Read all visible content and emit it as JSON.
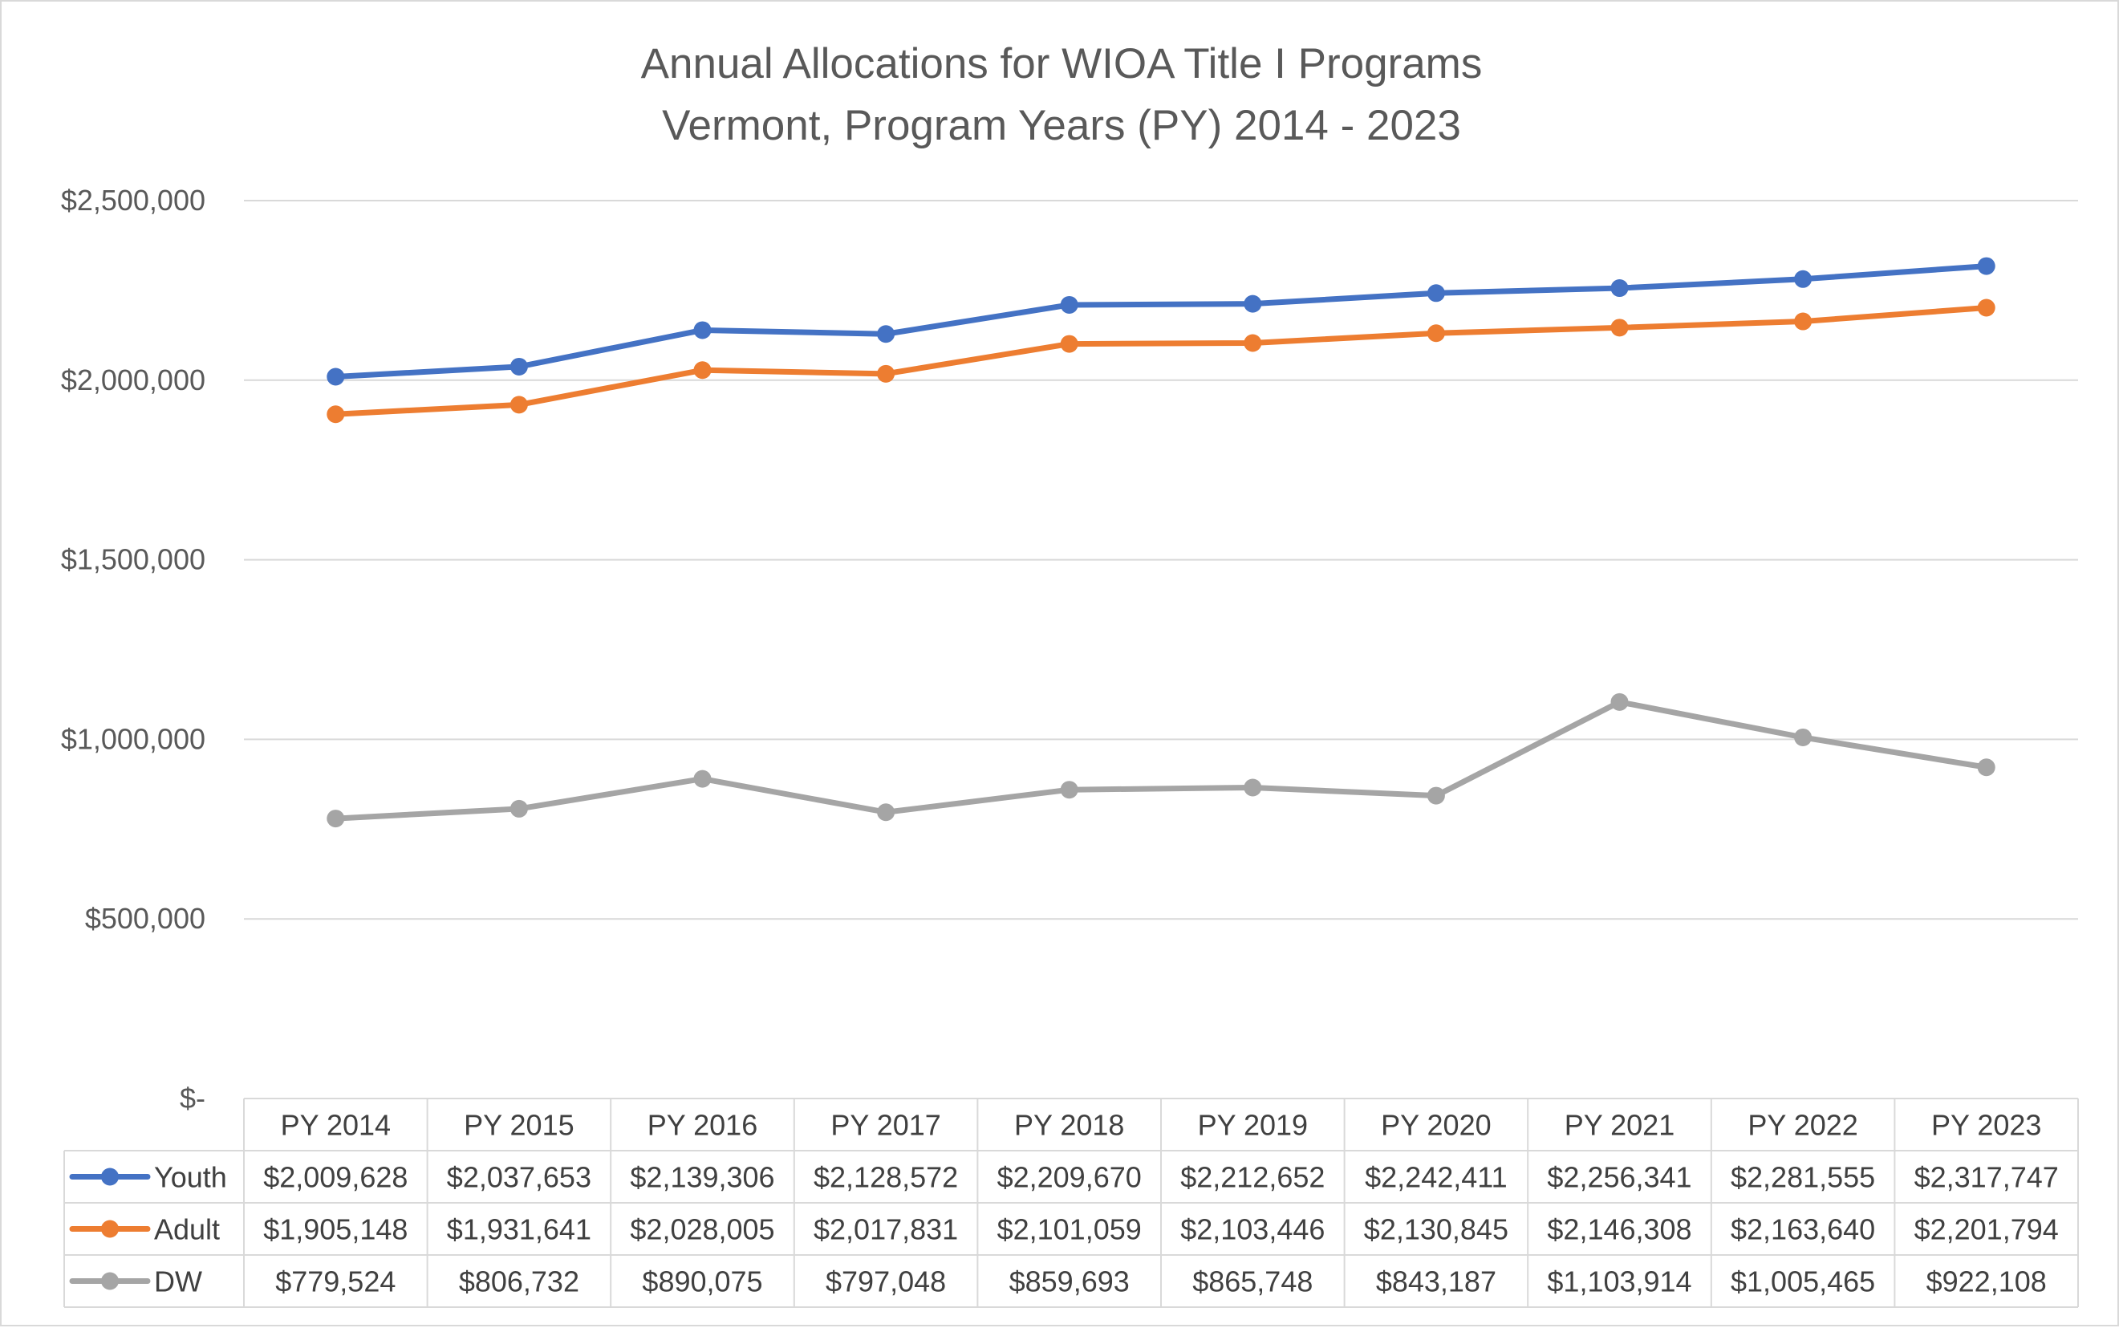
{
  "chart_data": {
    "type": "line",
    "title_lines": [
      "Annual Allocations for WIOA Title I Programs",
      "Vermont, Program Years (PY) 2014 - 2023"
    ],
    "categories": [
      "PY 2014",
      "PY 2015",
      "PY 2016",
      "PY 2017",
      "PY 2018",
      "PY 2019",
      "PY 2020",
      "PY 2021",
      "PY 2022",
      "PY 2023"
    ],
    "y_ticks": [
      {
        "value": 0,
        "label": "$-"
      },
      {
        "value": 500000,
        "label": "$500,000"
      },
      {
        "value": 1000000,
        "label": "$1,000,000"
      },
      {
        "value": 1500000,
        "label": "$1,500,000"
      },
      {
        "value": 2000000,
        "label": "$2,000,000"
      },
      {
        "value": 2500000,
        "label": "$2,500,000"
      }
    ],
    "ylim": [
      0,
      2500000
    ],
    "grid": true,
    "legend": "data-table",
    "series": [
      {
        "name": "Youth",
        "color": "#4472c4",
        "values": [
          2009628,
          2037653,
          2139306,
          2128572,
          2209670,
          2212652,
          2242411,
          2256341,
          2281555,
          2317747
        ],
        "labels": [
          "$2,009,628",
          "$2,037,653",
          "$2,139,306",
          "$2,128,572",
          "$2,209,670",
          "$2,212,652",
          "$2,242,411",
          "$2,256,341",
          "$2,281,555",
          "$2,317,747"
        ]
      },
      {
        "name": "Adult",
        "color": "#ed7d31",
        "values": [
          1905148,
          1931641,
          2028005,
          2017831,
          2101059,
          2103446,
          2130845,
          2146308,
          2163640,
          2201794
        ],
        "labels": [
          "$1,905,148",
          "$1,931,641",
          "$2,028,005",
          "$2,017,831",
          "$2,101,059",
          "$2,103,446",
          "$2,130,845",
          "$2,146,308",
          "$2,163,640",
          "$2,201,794"
        ]
      },
      {
        "name": "DW",
        "color": "#a5a5a5",
        "values": [
          779524,
          806732,
          890075,
          797048,
          859693,
          865748,
          843187,
          1103914,
          1005465,
          922108
        ],
        "labels": [
          "$779,524",
          "$806,732",
          "$890,075",
          "$797,048",
          "$859,693",
          "$865,748",
          "$843,187",
          "$1,103,914",
          "$1,005,465",
          "$922,108"
        ]
      }
    ]
  }
}
